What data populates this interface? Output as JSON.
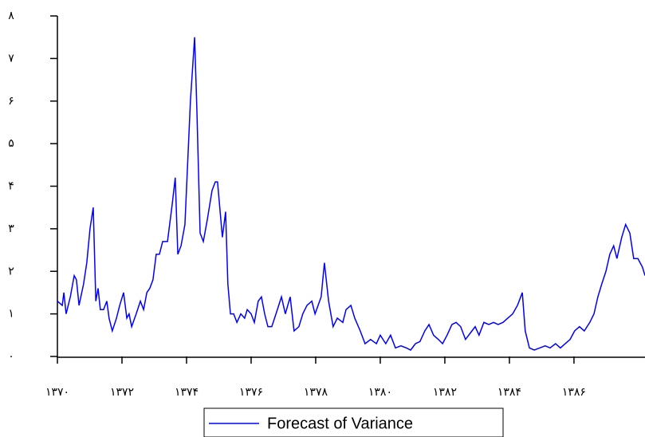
{
  "chart_data": {
    "type": "line",
    "x": [
      1370.0,
      1370.15,
      1370.2,
      1370.27,
      1370.4,
      1370.52,
      1370.59,
      1370.67,
      1370.81,
      1370.91,
      1371.01,
      1371.11,
      1371.19,
      1371.26,
      1371.33,
      1371.43,
      1371.53,
      1371.6,
      1371.7,
      1371.83,
      1371.93,
      1372.05,
      1372.15,
      1372.22,
      1372.3,
      1372.44,
      1372.57,
      1372.67,
      1372.77,
      1372.86,
      1372.96,
      1373.06,
      1373.16,
      1373.26,
      1373.41,
      1373.56,
      1373.65,
      1373.73,
      1373.83,
      1373.95,
      1374.02,
      1374.12,
      1374.25,
      1374.32,
      1374.42,
      1374.52,
      1374.64,
      1374.79,
      1374.89,
      1374.96,
      1375.11,
      1375.21,
      1375.28,
      1375.36,
      1375.46,
      1375.56,
      1375.68,
      1375.8,
      1375.88,
      1376.0,
      1376.1,
      1376.22,
      1376.32,
      1376.42,
      1376.52,
      1376.64,
      1376.77,
      1376.94,
      1377.06,
      1377.21,
      1377.33,
      1377.48,
      1377.6,
      1377.73,
      1377.88,
      1377.98,
      1378.17,
      1378.27,
      1378.4,
      1378.54,
      1378.67,
      1378.84,
      1378.94,
      1379.09,
      1379.21,
      1379.38,
      1379.53,
      1379.7,
      1379.88,
      1380.0,
      1380.17,
      1380.32,
      1380.47,
      1380.64,
      1380.81,
      1380.94,
      1381.09,
      1381.23,
      1381.38,
      1381.51,
      1381.65,
      1381.8,
      1381.93,
      1382.07,
      1382.22,
      1382.35,
      1382.49,
      1382.64,
      1382.79,
      1382.94,
      1383.06,
      1383.21,
      1383.36,
      1383.51,
      1383.65,
      1383.8,
      1383.95,
      1384.1,
      1384.25,
      1384.4,
      1384.49,
      1384.62,
      1384.77,
      1384.94,
      1385.11,
      1385.26,
      1385.43,
      1385.58,
      1385.73,
      1385.88,
      1386.02,
      1386.17,
      1386.32,
      1386.49,
      1386.62,
      1386.74,
      1386.86,
      1386.99,
      1387.11,
      1387.23,
      1387.33,
      1387.48,
      1387.6,
      1387.73,
      1387.85,
      1387.98,
      1388.12,
      1388.2
    ],
    "series": [
      {
        "name": "Forecast of Variance",
        "color": "#0000ff",
        "values": [
          1.3,
          1.2,
          1.5,
          1.0,
          1.4,
          1.9,
          1.8,
          1.2,
          1.7,
          2.2,
          3.0,
          3.5,
          1.3,
          1.6,
          1.1,
          1.1,
          1.3,
          0.9,
          0.6,
          0.9,
          1.2,
          1.5,
          0.9,
          1.0,
          0.7,
          1.0,
          1.3,
          1.1,
          1.5,
          1.6,
          1.8,
          2.4,
          2.4,
          2.7,
          2.7,
          3.6,
          4.2,
          2.4,
          2.6,
          3.1,
          4.3,
          6.0,
          7.5,
          5.8,
          2.9,
          2.7,
          3.2,
          3.9,
          4.1,
          4.1,
          2.8,
          3.4,
          1.7,
          1.0,
          1.0,
          0.8,
          1.0,
          0.9,
          1.1,
          1.0,
          0.8,
          1.3,
          1.4,
          1.0,
          0.7,
          0.7,
          1.0,
          1.4,
          1.0,
          1.4,
          0.6,
          0.7,
          1.0,
          1.2,
          1.3,
          1.0,
          1.4,
          2.2,
          1.3,
          0.7,
          0.9,
          0.8,
          1.1,
          1.2,
          0.9,
          0.6,
          0.3,
          0.4,
          0.3,
          0.5,
          0.3,
          0.5,
          0.2,
          0.25,
          0.2,
          0.15,
          0.3,
          0.35,
          0.6,
          0.75,
          0.5,
          0.4,
          0.3,
          0.5,
          0.75,
          0.8,
          0.7,
          0.4,
          0.55,
          0.7,
          0.5,
          0.8,
          0.75,
          0.8,
          0.75,
          0.8,
          0.9,
          1.0,
          1.2,
          1.5,
          0.6,
          0.2,
          0.15,
          0.2,
          0.25,
          0.2,
          0.3,
          0.2,
          0.3,
          0.4,
          0.6,
          0.7,
          0.6,
          0.8,
          1.0,
          1.4,
          1.7,
          2.0,
          2.4,
          2.6,
          2.3,
          2.8,
          3.1,
          2.9,
          2.3,
          2.3,
          2.1,
          1.9
        ]
      }
    ],
    "xlim": [
      1370,
      1388.2
    ],
    "xticks": [
      {
        "value": 1370,
        "label": "۱۳۷۰"
      },
      {
        "value": 1372,
        "label": "۱۳۷۲"
      },
      {
        "value": 1374,
        "label": "۱۳۷۴"
      },
      {
        "value": 1376,
        "label": "۱۳۷۶"
      },
      {
        "value": 1378,
        "label": "۱۳۷۸"
      },
      {
        "value": 1380,
        "label": "۱۳۸۰"
      },
      {
        "value": 1382,
        "label": "۱۳۸۲"
      },
      {
        "value": 1384,
        "label": "۱۳۸۴"
      },
      {
        "value": 1386,
        "label": "۱۳۸۶"
      }
    ],
    "ylim": [
      0,
      8
    ],
    "yticks": [
      {
        "value": 0,
        "label": "۰"
      },
      {
        "value": 1,
        "label": "۱"
      },
      {
        "value": 2,
        "label": "۲"
      },
      {
        "value": 3,
        "label": "۳"
      },
      {
        "value": 4,
        "label": "۴"
      },
      {
        "value": 5,
        "label": "۵"
      },
      {
        "value": 6,
        "label": "۶"
      },
      {
        "value": 7,
        "label": "۷"
      },
      {
        "value": 8,
        "label": "۸"
      }
    ],
    "grid": false
  }
}
